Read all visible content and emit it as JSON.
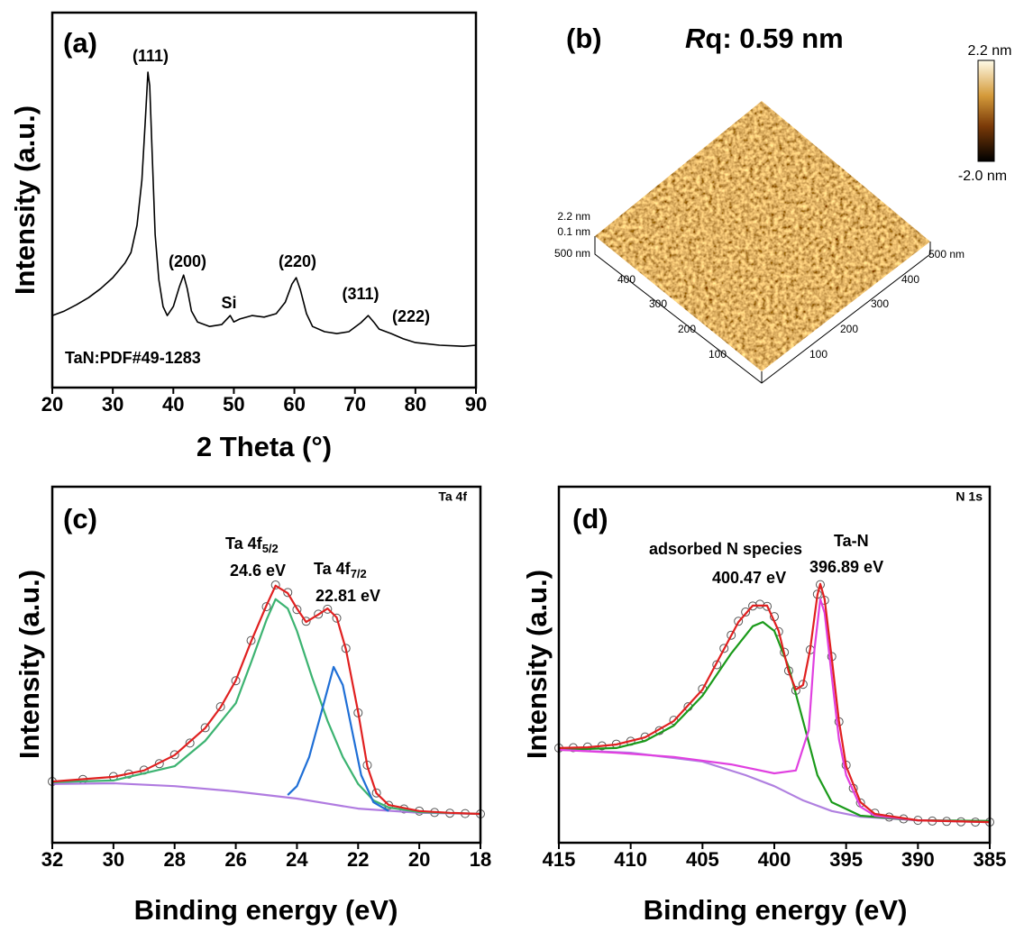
{
  "chart_data": [
    {
      "type": "line",
      "panel": "(a)",
      "x_label": "2 Theta (°)",
      "y_label": "Intensity (a.u.)",
      "xlim": [
        20,
        90
      ],
      "xticks": [
        20,
        30,
        40,
        50,
        60,
        70,
        80,
        90
      ],
      "ylim": [
        0,
        100
      ],
      "peak_labels": [
        "(111)",
        "(200)",
        "Si",
        "(220)",
        "(311)",
        "(222)"
      ],
      "reference": "TaN:PDF#49-1283",
      "series": [
        {
          "color": "#000000",
          "mode": "line",
          "x": [
            20,
            22,
            24,
            26,
            28,
            30,
            32,
            33,
            34,
            34.8,
            35.4,
            35.8,
            36.1,
            36.5,
            37,
            37.6,
            38.3,
            39,
            40,
            41,
            41.7,
            42.3,
            43,
            44,
            46,
            48,
            49.4,
            50,
            51,
            53,
            55,
            57,
            58.5,
            59.6,
            60.3,
            61,
            62,
            63,
            65,
            67,
            69,
            71,
            72.2,
            73.2,
            74,
            76,
            78,
            80,
            84,
            88,
            90
          ],
          "values": [
            19.2,
            20.4,
            22.1,
            24,
            26.4,
            29.3,
            33.2,
            36,
            43.3,
            55.3,
            72.1,
            84.1,
            80.5,
            62.5,
            40.9,
            28.8,
            21.6,
            19.2,
            21.6,
            26.9,
            30,
            26.4,
            20.4,
            17.5,
            16.3,
            16.8,
            19.2,
            17.5,
            18.3,
            19.2,
            18.8,
            19.7,
            22.8,
            27.6,
            29.3,
            26,
            19.7,
            16.3,
            14.9,
            14.4,
            14.9,
            17.3,
            19.2,
            17.3,
            15.6,
            14.4,
            13,
            12,
            11.3,
            11,
            11.3
          ]
        }
      ]
    },
    {
      "type": "image",
      "panel": "(b)",
      "title_symbol": "R",
      "title_rest": "q: 0.59 nm",
      "colorbar_labels": [
        "2.2 nm",
        "-2.0 nm"
      ],
      "z_labels": [
        "2.2 nm",
        "0.1 nm"
      ],
      "x_labels": [
        "500 nm",
        "400",
        "300",
        "200",
        "100"
      ],
      "y_labels": [
        "500 nm",
        "400",
        "300",
        "200",
        "100"
      ]
    },
    {
      "type": "line",
      "panel": "(c)",
      "x_label": "Binding energy (eV)",
      "y_label": "Intensity (a.u.)",
      "xlim": [
        32,
        18
      ],
      "xticks": [
        32,
        30,
        28,
        26,
        24,
        22,
        20,
        18
      ],
      "ylim": [
        0,
        100
      ],
      "corner_label": "Ta 4f",
      "peaks": [
        {
          "name": "Ta 4f",
          "sub": "5/2",
          "energy": "24.6 eV"
        },
        {
          "name": "Ta 4f",
          "sub": "7/2",
          "energy": "22.81 eV"
        }
      ],
      "series": [
        {
          "color": "#555555",
          "mode": "markers",
          "x": [
            32,
            31,
            30,
            29.5,
            29,
            28.5,
            28,
            27.5,
            27,
            26.5,
            26,
            25.5,
            25,
            24.7,
            24.3,
            24,
            23.7,
            23.3,
            23,
            22.7,
            22.4,
            22,
            21.7,
            21.4,
            21,
            20.5,
            20,
            19.5,
            19,
            18.5,
            18
          ],
          "values": [
            17.2,
            17.8,
            18.6,
            19.3,
            20.4,
            22.2,
            24.7,
            28,
            32.3,
            38.2,
            45.5,
            56.8,
            66.3,
            72.4,
            70.3,
            65.5,
            62.2,
            64.2,
            65.6,
            63.1,
            54.6,
            36.5,
            21.8,
            14,
            10.5,
            9.5,
            8.9,
            8.5,
            8.3,
            8.2,
            8.1
          ]
        },
        {
          "color": "#b07be0",
          "mode": "line",
          "x": [
            32,
            30,
            28,
            26,
            24,
            22,
            20,
            18
          ],
          "values": [
            16.5,
            16.7,
            15.9,
            14.4,
            12.4,
            9.6,
            8.4,
            8.1
          ]
        },
        {
          "color": "#3cb371",
          "mode": "line",
          "x": [
            32,
            30,
            28,
            27,
            26,
            25.5,
            25,
            24.7,
            24.3,
            24,
            23.5,
            23,
            22.5,
            22,
            21.5,
            21,
            20,
            18
          ],
          "values": [
            17,
            17.5,
            21.5,
            28.6,
            39.2,
            50.6,
            62.5,
            68.4,
            65.8,
            59.5,
            46.3,
            34.2,
            24.1,
            16.5,
            11.9,
            9.9,
            8.6,
            8.1
          ]
        },
        {
          "color": "#1f6fd6",
          "mode": "line",
          "x": [
            24.3,
            24,
            23.6,
            23.2,
            22.8,
            22.5,
            22.2,
            21.9,
            21.5,
            21
          ],
          "values": [
            13.4,
            15.9,
            24.1,
            36.7,
            49.4,
            44.3,
            31.6,
            19,
            11.4,
            8.9
          ]
        },
        {
          "color": "#e02020",
          "mode": "line",
          "x": [
            32,
            30,
            29,
            28,
            27,
            26.5,
            26,
            25.5,
            25,
            24.7,
            24.3,
            24,
            23.7,
            23.3,
            23,
            22.7,
            22.4,
            22,
            21.7,
            21.4,
            21,
            20,
            19,
            18
          ],
          "values": [
            17.2,
            18.5,
            20.3,
            24.6,
            32.2,
            38,
            45.6,
            56.5,
            66.6,
            72.2,
            70.1,
            65.8,
            62,
            64.1,
            65.8,
            63.3,
            54.4,
            36.7,
            21.5,
            13.9,
            10.6,
            8.9,
            8.4,
            8.1
          ]
        }
      ]
    },
    {
      "type": "line",
      "panel": "(d)",
      "x_label": "Binding energy (eV)",
      "y_label": "Intensity (a.u.)",
      "xlim": [
        415,
        385
      ],
      "xticks": [
        415,
        410,
        405,
        400,
        395,
        390,
        385
      ],
      "ylim": [
        0,
        100
      ],
      "corner_label": "N 1s",
      "peaks": [
        {
          "name": "adsorbed N species",
          "energy": "400.47 eV"
        },
        {
          "name": "Ta-N",
          "energy": "396.89 eV"
        }
      ],
      "series": [
        {
          "color": "#555555",
          "mode": "markers",
          "x": [
            415,
            414,
            413,
            412,
            411,
            410,
            409,
            408,
            407,
            406,
            405,
            404,
            403.5,
            403,
            402.5,
            402,
            401.5,
            401,
            400.5,
            400,
            399.7,
            399.3,
            399,
            398.5,
            398,
            397.5,
            397,
            396.8,
            396.5,
            396,
            395.5,
            395,
            394.5,
            394,
            393,
            392,
            391,
            390,
            389,
            388,
            387,
            386,
            385
          ],
          "values": [
            26.6,
            26.7,
            26.9,
            27.2,
            27.7,
            28.5,
            29.7,
            31.5,
            34.4,
            38.2,
            43.2,
            50,
            54.6,
            58.3,
            62.2,
            64.8,
            66.5,
            67,
            66.4,
            63.5,
            59.3,
            53.5,
            48.3,
            42.8,
            44.5,
            54.2,
            69.8,
            72.5,
            68.1,
            52.3,
            34,
            21.8,
            15.3,
            11.2,
            8.3,
            7.2,
            6.7,
            6.3,
            6.1,
            6,
            5.9,
            5.8,
            5.8
          ]
        },
        {
          "color": "#b080e0",
          "mode": "line",
          "x": [
            415,
            410,
            405,
            402,
            400,
            398,
            396,
            394,
            390,
            385
          ],
          "values": [
            26.1,
            25.3,
            22.8,
            19,
            15.9,
            11.9,
            8.9,
            7.3,
            6.3,
            6.1
          ]
        },
        {
          "color": "#1a9a1a",
          "mode": "line",
          "x": [
            415,
            411,
            409,
            407,
            405,
            403,
            401.5,
            400.8,
            400,
            399,
            398,
            397,
            396,
            394,
            390,
            385
          ],
          "values": [
            26.1,
            26.6,
            28.6,
            32.9,
            41.3,
            53.2,
            60.8,
            62,
            59.5,
            49.4,
            34.2,
            19,
            11.4,
            7.6,
            6.3,
            6.1
          ]
        },
        {
          "color": "#e040e0",
          "mode": "line",
          "x": [
            415,
            411,
            407,
            403,
            400,
            398.5,
            397.6,
            397.2,
            396.8,
            396.5,
            396,
            395.5,
            395,
            394,
            393,
            390,
            385
          ],
          "values": [
            26.1,
            25.3,
            24.1,
            22,
            19.5,
            20.3,
            31.6,
            54.4,
            68.4,
            64.6,
            46.8,
            29.1,
            19,
            10.1,
            7.6,
            6.3,
            5.8
          ]
        },
        {
          "color": "#e02020",
          "mode": "line",
          "x": [
            415,
            413,
            411,
            409,
            407,
            405,
            403.5,
            402.5,
            401.5,
            400.5,
            399.7,
            399,
            398.5,
            398,
            397.5,
            397,
            396.8,
            396.5,
            396,
            395.5,
            395,
            394,
            393,
            390,
            385
          ],
          "values": [
            26.6,
            26.8,
            27.6,
            29.6,
            34.2,
            43,
            54.4,
            62,
            66.6,
            66.6,
            59.5,
            48.1,
            43,
            44.3,
            54.4,
            69.6,
            72.7,
            68.4,
            51.9,
            34.2,
            21.5,
            11.4,
            8.1,
            6.3,
            5.8
          ]
        }
      ]
    }
  ]
}
